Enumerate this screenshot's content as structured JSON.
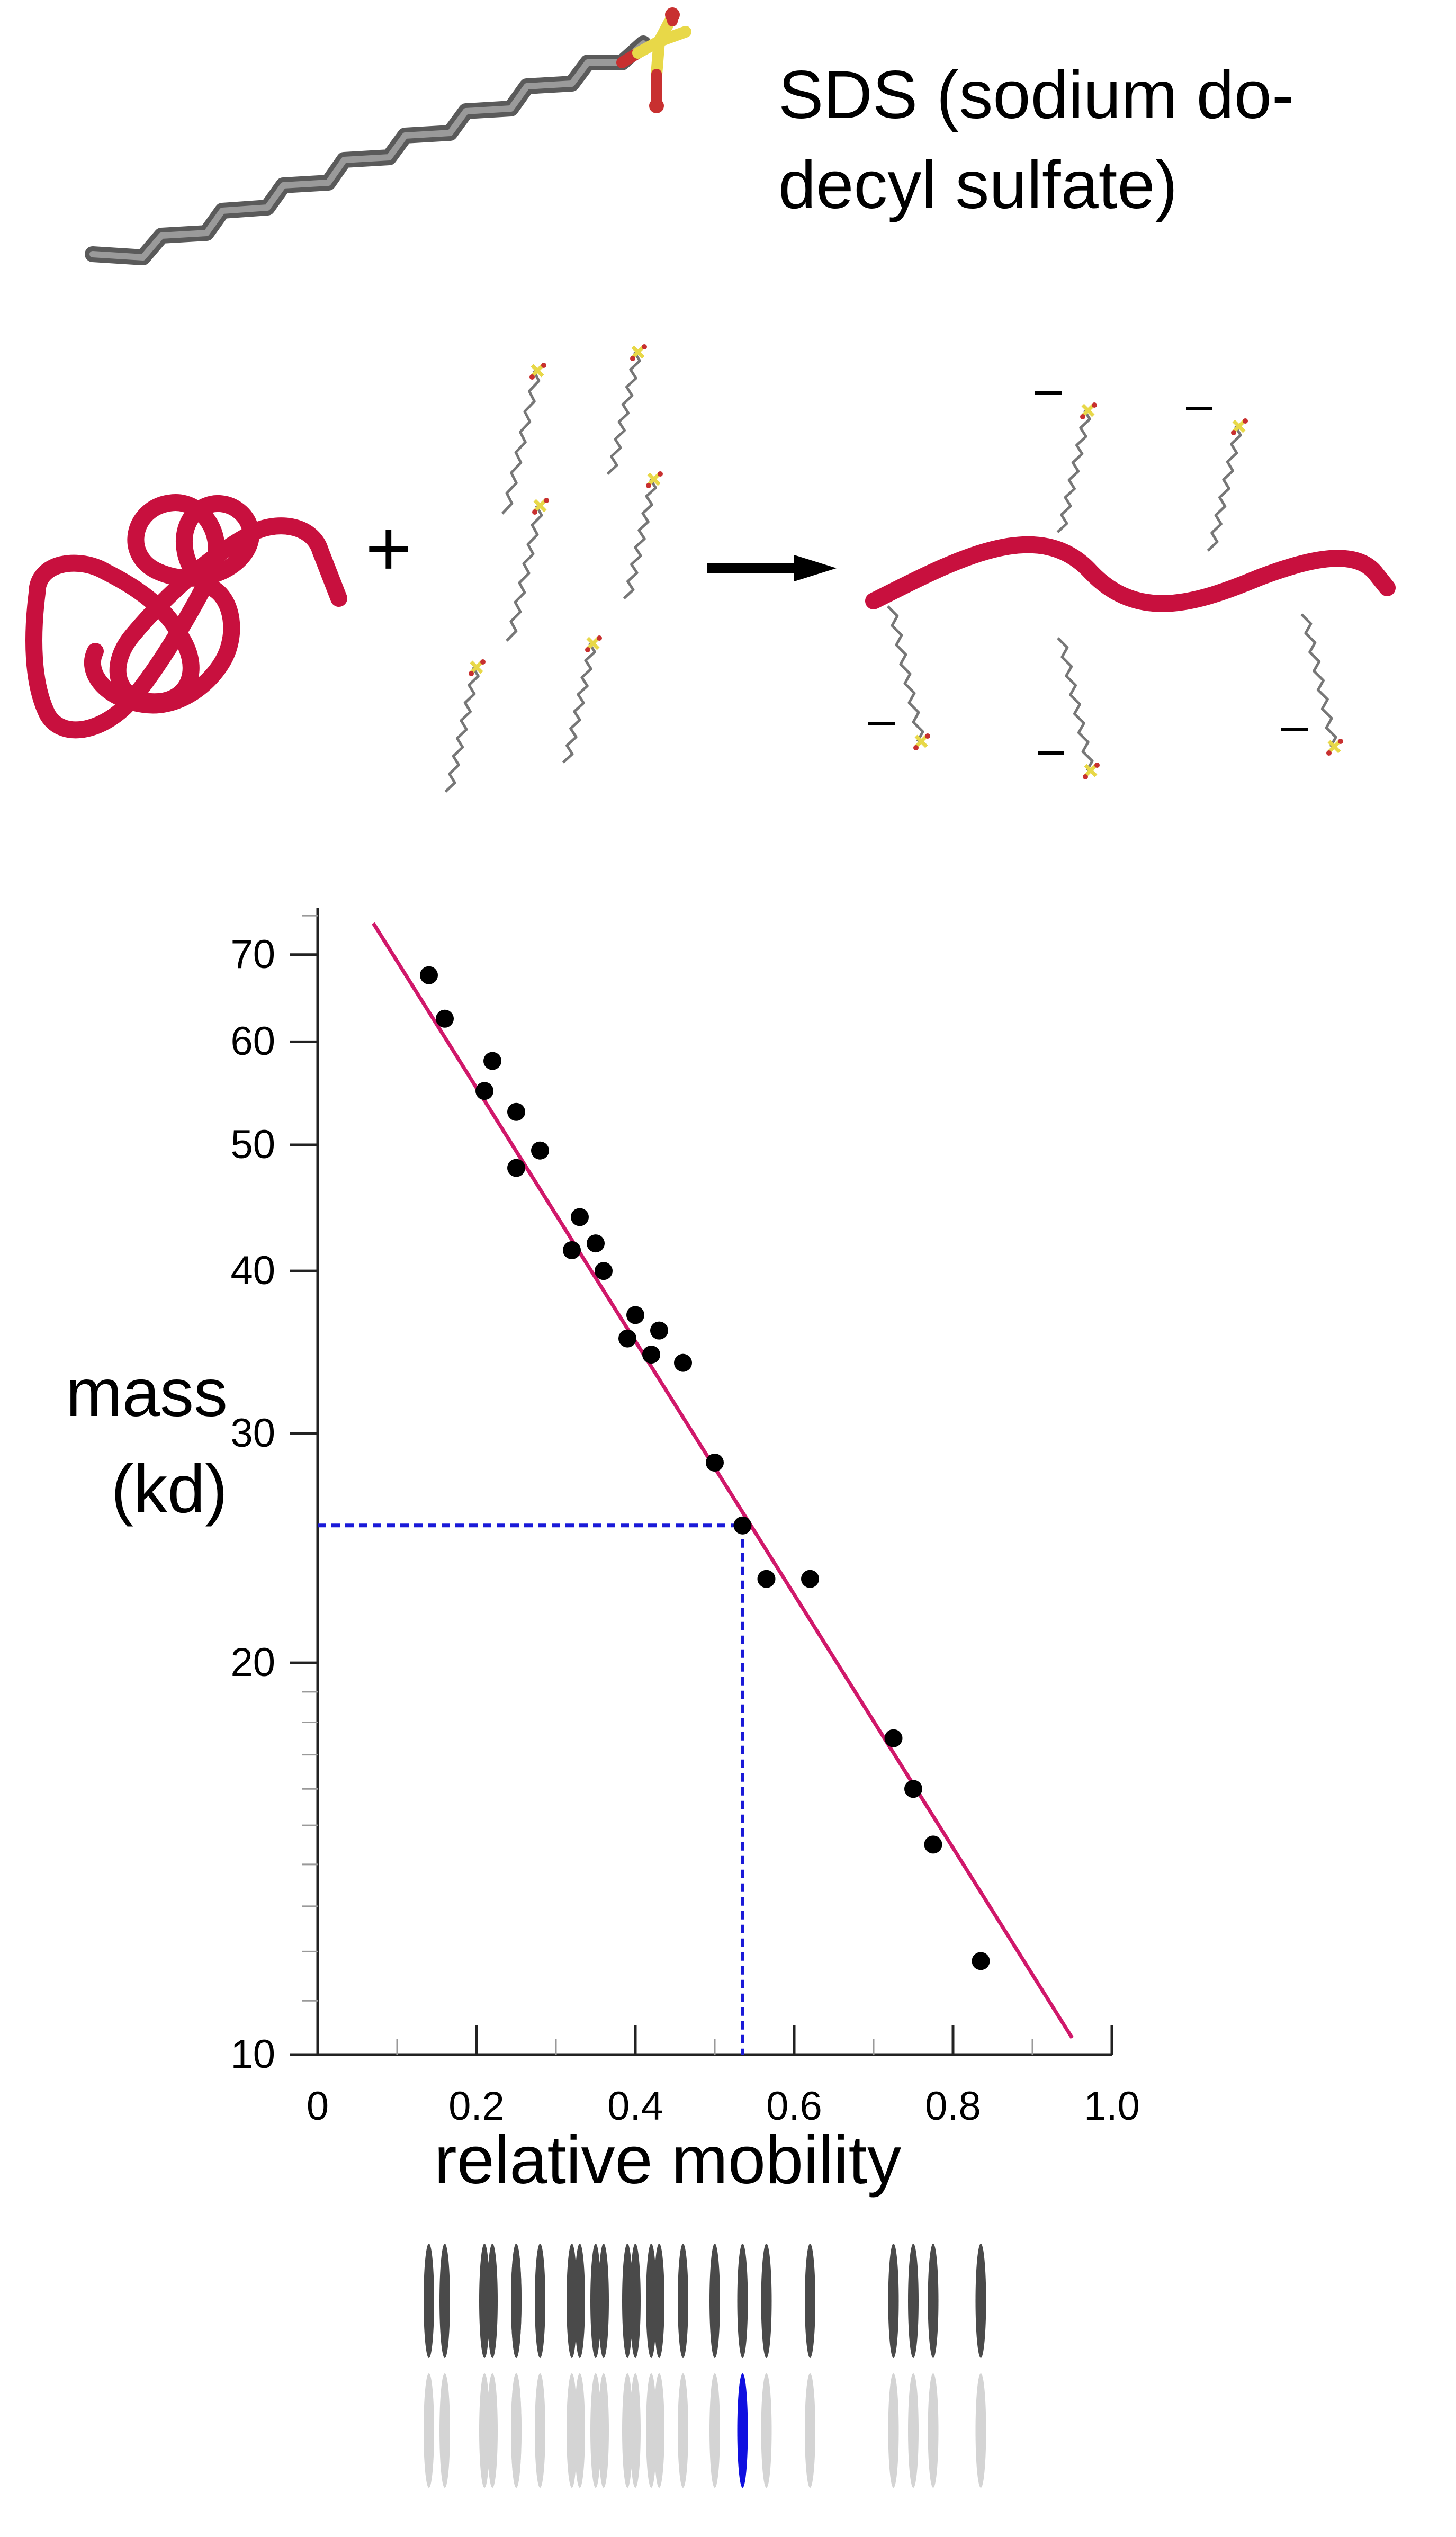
{
  "sds_label": {
    "line1": "SDS (sodium do-",
    "line2": "decyl sulfate)"
  },
  "reaction": {
    "plus": "+",
    "charge": "–"
  },
  "colors": {
    "protein": "#c8103e",
    "fit_line": "#d0186a",
    "guide_line": "#1a1ad8",
    "marker_band": "#4a4a4a",
    "sample_band": "#d4d4d4",
    "highlight_band": "#1010e0",
    "sds_tail": "#777777",
    "sulfur": "#e8d848",
    "oxygen": "#c83030"
  },
  "chart_data": {
    "type": "scatter",
    "xlabel": "relative mobility",
    "ylabel_line1": "mass",
    "ylabel_line2": "(kd)",
    "y_scale": "log",
    "xlim": [
      0,
      1.0
    ],
    "ylim": [
      10,
      76
    ],
    "x_ticks": [
      "0",
      "0.2",
      "0.4",
      "0.6",
      "0.8",
      "1.0"
    ],
    "y_ticks": [
      "10",
      "20",
      "30",
      "40",
      "50",
      "60",
      "70"
    ],
    "points": [
      {
        "x": 0.14,
        "y": 67.5
      },
      {
        "x": 0.16,
        "y": 62.5
      },
      {
        "x": 0.21,
        "y": 55.0
      },
      {
        "x": 0.22,
        "y": 58.0
      },
      {
        "x": 0.25,
        "y": 53.0
      },
      {
        "x": 0.25,
        "y": 48.0
      },
      {
        "x": 0.28,
        "y": 49.5
      },
      {
        "x": 0.32,
        "y": 41.5
      },
      {
        "x": 0.33,
        "y": 44.0
      },
      {
        "x": 0.35,
        "y": 42.0
      },
      {
        "x": 0.36,
        "y": 40.0
      },
      {
        "x": 0.39,
        "y": 35.5
      },
      {
        "x": 0.4,
        "y": 37.0
      },
      {
        "x": 0.42,
        "y": 34.5
      },
      {
        "x": 0.43,
        "y": 36.0
      },
      {
        "x": 0.46,
        "y": 34.0
      },
      {
        "x": 0.5,
        "y": 28.5
      },
      {
        "x": 0.535,
        "y": 25.5
      },
      {
        "x": 0.565,
        "y": 23.2
      },
      {
        "x": 0.62,
        "y": 23.2
      },
      {
        "x": 0.725,
        "y": 17.5
      },
      {
        "x": 0.75,
        "y": 16.0
      },
      {
        "x": 0.775,
        "y": 14.5
      },
      {
        "x": 0.835,
        "y": 11.8
      }
    ],
    "fit_line": {
      "x": [
        0.07,
        0.95
      ],
      "y": [
        74.0,
        10.3
      ]
    },
    "unknown_sample": {
      "x": 0.535,
      "y": 25.5
    },
    "gel_bands_markers_x": [
      0.14,
      0.16,
      0.21,
      0.22,
      0.25,
      0.25,
      0.28,
      0.32,
      0.33,
      0.35,
      0.36,
      0.39,
      0.4,
      0.42,
      0.43,
      0.46,
      0.5,
      0.535,
      0.565,
      0.62,
      0.725,
      0.75,
      0.775,
      0.835
    ],
    "gel_bands_sample_highlight_x": 0.535,
    "grid": false,
    "legend": "none"
  }
}
